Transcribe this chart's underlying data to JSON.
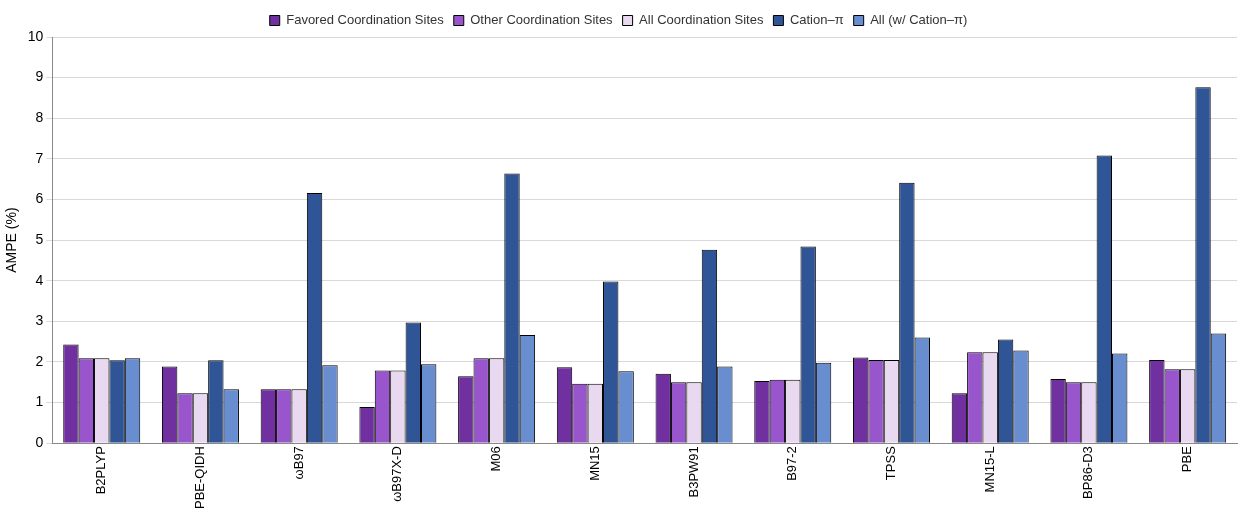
{
  "chart_data": {
    "type": "bar",
    "ylabel": "AMPE (%)",
    "categories": [
      "B2PLYP",
      "PBE-QIDH",
      "ωB97",
      "ωB97X-D",
      "M06",
      "MN15",
      "B3PW91",
      "B97-2",
      "TPSS",
      "MN15-L",
      "BP86-D3",
      "PBE"
    ],
    "series": [
      {
        "name": "Favored Coordination Sites",
        "color": "#7030a0",
        "values": [
          2.43,
          1.89,
          1.33,
          0.89,
          1.65,
          1.87,
          1.71,
          1.53,
          2.11,
          1.23,
          1.58,
          2.05
        ]
      },
      {
        "name": "Other Coordination Sites",
        "color": "#9955cc",
        "values": [
          2.09,
          1.23,
          1.33,
          1.79,
          2.09,
          1.46,
          1.5,
          1.56,
          2.05,
          2.24,
          1.5,
          1.82
        ]
      },
      {
        "name": "All Coordination Sites",
        "color": "#e8d8f0",
        "values": [
          2.09,
          1.23,
          1.33,
          1.79,
          2.09,
          1.46,
          1.5,
          1.56,
          2.05,
          2.24,
          1.5,
          1.82
        ]
      },
      {
        "name": "Cation–π",
        "color": "#2f5597",
        "values": [
          2.04,
          2.04,
          6.16,
          2.97,
          6.64,
          3.98,
          4.76,
          4.84,
          6.41,
          2.55,
          7.08,
          8.76
        ]
      },
      {
        "name": "All (w/ Cation–π)",
        "color": "#698ed0",
        "values": [
          2.09,
          1.33,
          1.92,
          1.94,
          2.66,
          1.77,
          1.89,
          1.98,
          2.6,
          2.28,
          2.21,
          2.7
        ]
      }
    ],
    "ylim": [
      0,
      10
    ],
    "yticks": [
      0,
      1,
      2,
      3,
      4,
      5,
      6,
      7,
      8,
      9,
      10
    ],
    "grid": "y",
    "legend": "top"
  }
}
